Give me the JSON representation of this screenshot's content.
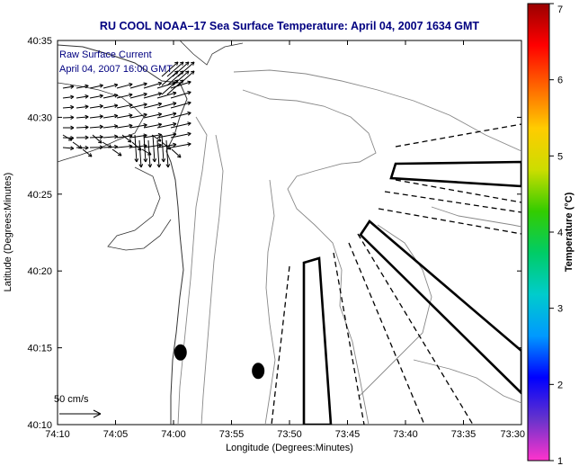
{
  "title": "RU COOL  NOAA–17  Sea Surface Temperature:  April 04, 2007 1634 GMT",
  "legend_lines": [
    "Raw Surface Current",
    "April 04, 2007 16:00 GMT"
  ],
  "scale_label": "50 cm/s",
  "colorbar": {
    "label": "Temperature (°C)",
    "ticks": [
      "1",
      "2",
      "3",
      "4",
      "5",
      "6",
      "7"
    ],
    "range": [
      1,
      7
    ],
    "colors": [
      "#ff33cc",
      "#6633cc",
      "#0000ff",
      "#0099ff",
      "#00cccc",
      "#00cc66",
      "#33cc00",
      "#ccdd00",
      "#ffcc00",
      "#ff6600",
      "#ff0000",
      "#990000"
    ]
  },
  "chart_data": {
    "type": "map",
    "title": "RU COOL  NOAA–17  Sea Surface Temperature:  April 04, 2007 1634 GMT",
    "xlabel": "Longitude (Degrees:Minutes)",
    "ylabel": "Latitude (Degrees:Minutes)",
    "x_ticks": [
      "74:10",
      "74:05",
      "74:00",
      "73:55",
      "73:50",
      "73:45",
      "73:40",
      "73:35",
      "73:30"
    ],
    "y_ticks": [
      "40:10",
      "40:15",
      "40:20",
      "40:25",
      "40:30",
      "40:35"
    ],
    "xlim_minutes": [
      -10,
      30
    ],
    "ylim_minutes": [
      10,
      35
    ],
    "dots": [
      {
        "lon_min": 0.6,
        "lat_min": 14.7
      },
      {
        "lon_min": 7.3,
        "lat_min": 13.5
      }
    ]
  }
}
